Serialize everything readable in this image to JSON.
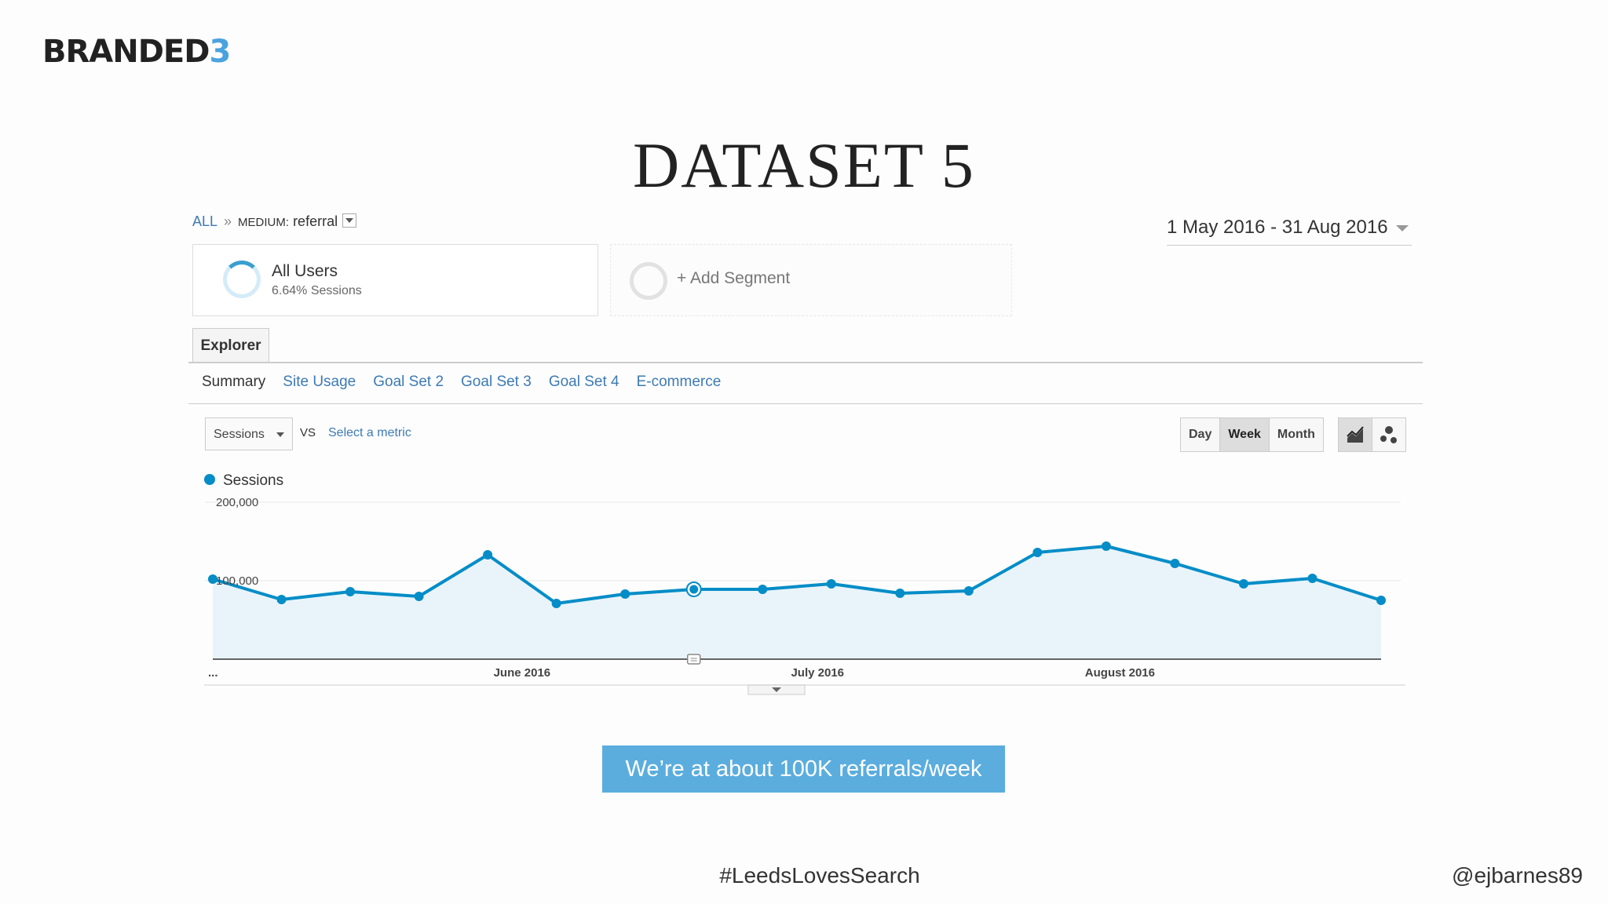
{
  "logo": {
    "main": "BRANDED",
    "accent": "3",
    "accent_color": "#4aa3df"
  },
  "slide_title": "DATASET 5",
  "breadcrumb": {
    "all": "ALL",
    "separator": "»",
    "medium_label": "MEDIUM:",
    "medium_value": "referral"
  },
  "date_range": "1 May 2016 - 31 Aug 2016",
  "segment": {
    "name": "All Users",
    "detail": "6.64% Sessions"
  },
  "add_segment": "+ Add Segment",
  "explorer_tab": "Explorer",
  "subtabs": [
    "Summary",
    "Site Usage",
    "Goal Set 2",
    "Goal Set 3",
    "Goal Set 4",
    "E-commerce"
  ],
  "metric": {
    "selected": "Sessions",
    "vs": "VS",
    "select_metric": "Select a metric"
  },
  "granularity": {
    "options": [
      "Day",
      "Week",
      "Month"
    ],
    "selected": "Week"
  },
  "chart_icons": [
    "line-chart-icon",
    "motion-chart-icon"
  ],
  "legend": {
    "label": "Sessions",
    "color": "#058dc7"
  },
  "chart_data": {
    "type": "area",
    "series": [
      {
        "name": "Sessions",
        "color": "#058dc7",
        "values": [
          102000,
          76000,
          86000,
          80000,
          133000,
          71000,
          83000,
          89000,
          89000,
          96000,
          84000,
          87000,
          136000,
          144000,
          122000,
          96000,
          103000,
          75000
        ]
      }
    ],
    "y_ticks": [
      "200,000",
      "100,000"
    ],
    "ylim": [
      0,
      200000
    ],
    "x_labels": [
      {
        "label": "...",
        "index": 0
      },
      {
        "label": "June 2016",
        "index": 4.5
      },
      {
        "label": "July 2016",
        "index": 8.8
      },
      {
        "label": "August 2016",
        "index": 13.2
      }
    ],
    "highlighted_index": 7,
    "annotation_index": 7
  },
  "callout": "We’re at about 100K referrals/week",
  "footer": {
    "hashtag": "#LeedsLovesSearch",
    "handle": "@ejbarnes89"
  }
}
